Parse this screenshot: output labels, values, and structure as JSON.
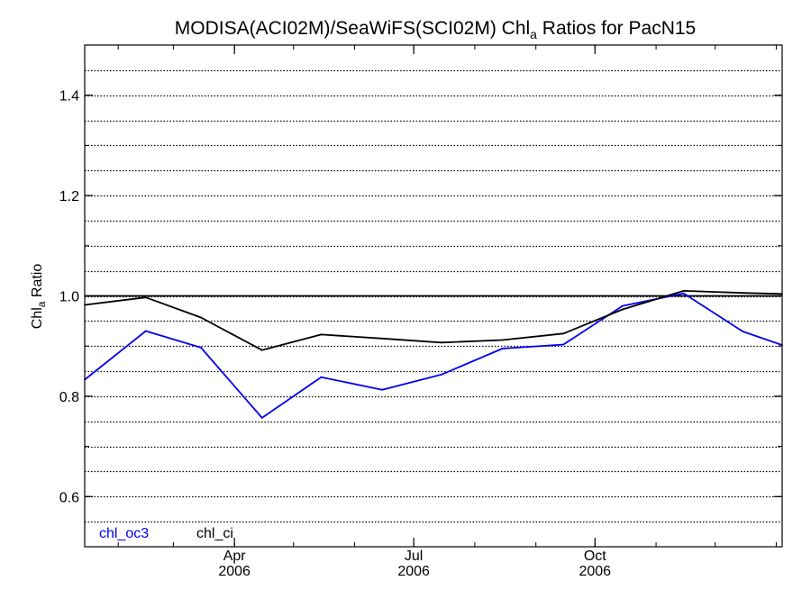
{
  "chart_data": {
    "type": "line",
    "title": {
      "prefix": "MODISA(ACI02M)/SeaWiFS(SCI02M)  Chl",
      "subscript": "a",
      "suffix": " Ratios for PacN15"
    },
    "ylabel": {
      "prefix": "Chl",
      "subscript": "a",
      "suffix": " Ratio"
    },
    "ylim": [
      0.5,
      1.5
    ],
    "yticks": [
      {
        "value": 0.6,
        "label": "0.6"
      },
      {
        "value": 0.8,
        "label": "0.8"
      },
      {
        "value": 1.0,
        "label": "1.0"
      },
      {
        "value": 1.2,
        "label": "1.2"
      },
      {
        "value": 1.4,
        "label": "1.4"
      }
    ],
    "xlim": [
      "2006-01-15",
      "2007-01-04"
    ],
    "xticks": [
      {
        "date": "2006-04-01",
        "month": "Apr",
        "year": "2006"
      },
      {
        "date": "2006-07-01",
        "month": "Jul",
        "year": "2006"
      },
      {
        "date": "2006-10-01",
        "month": "Oct",
        "year": "2006"
      }
    ],
    "grid": true,
    "grid_style": "dotted",
    "reference_line": 1.0,
    "series": [
      {
        "name": "chl_oc3",
        "color": "#0000ee",
        "points": [
          {
            "date": "2006-01-15",
            "value": 0.833
          },
          {
            "date": "2006-02-15",
            "value": 0.93
          },
          {
            "date": "2006-03-15",
            "value": 0.897
          },
          {
            "date": "2006-04-15",
            "value": 0.757
          },
          {
            "date": "2006-05-15",
            "value": 0.838
          },
          {
            "date": "2006-06-15",
            "value": 0.813
          },
          {
            "date": "2006-07-15",
            "value": 0.843
          },
          {
            "date": "2006-08-15",
            "value": 0.895
          },
          {
            "date": "2006-09-15",
            "value": 0.903
          },
          {
            "date": "2006-10-15",
            "value": 0.98
          },
          {
            "date": "2006-11-15",
            "value": 1.005
          },
          {
            "date": "2006-12-15",
            "value": 0.929
          },
          {
            "date": "2007-01-04",
            "value": 0.902
          }
        ]
      },
      {
        "name": "chl_ci",
        "color": "#000000",
        "points": [
          {
            "date": "2006-01-15",
            "value": 0.982
          },
          {
            "date": "2006-02-15",
            "value": 0.997
          },
          {
            "date": "2006-03-15",
            "value": 0.957
          },
          {
            "date": "2006-04-15",
            "value": 0.892
          },
          {
            "date": "2006-05-15",
            "value": 0.923
          },
          {
            "date": "2006-06-15",
            "value": 0.915
          },
          {
            "date": "2006-07-15",
            "value": 0.907
          },
          {
            "date": "2006-08-15",
            "value": 0.912
          },
          {
            "date": "2006-09-15",
            "value": 0.925
          },
          {
            "date": "2006-10-15",
            "value": 0.973
          },
          {
            "date": "2006-11-15",
            "value": 1.01
          },
          {
            "date": "2006-12-15",
            "value": 1.006
          },
          {
            "date": "2007-01-04",
            "value": 1.004
          }
        ]
      }
    ],
    "legend": {
      "placement": "bottom-left",
      "entries": [
        {
          "label": "chl_oc3",
          "color": "#0000ee"
        },
        {
          "label": "chl_ci",
          "color": "#000000"
        }
      ]
    }
  }
}
